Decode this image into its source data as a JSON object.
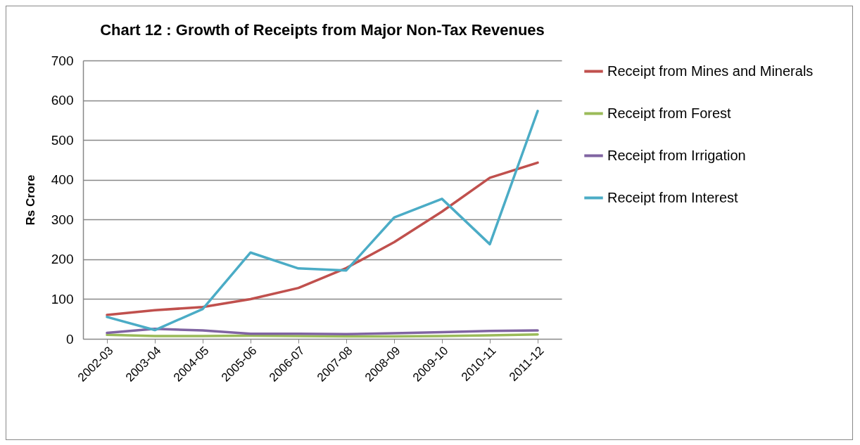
{
  "chart_data": {
    "type": "line",
    "title": "Chart  12  :  Growth of Receipts from Major Non-Tax Revenues",
    "ylabel": "Rs Crore",
    "categories": [
      "2002-03",
      "2003-04",
      "2004-05",
      "2005-06",
      "2006-07",
      "2007-08",
      "2008-09",
      "2009-10",
      "2010-11",
      "2011-12"
    ],
    "series": [
      {
        "name": "Receipt from Mines and Minerals",
        "color": "#c0504d",
        "values": [
          60,
          72,
          80,
          100,
          128,
          178,
          243,
          320,
          405,
          443
        ]
      },
      {
        "name": "Receipt from Forest",
        "color": "#9bbb59",
        "values": [
          10,
          7,
          7,
          8,
          7,
          6,
          6,
          7,
          9,
          11
        ]
      },
      {
        "name": "Receipt from Irrigation",
        "color": "#8064a2",
        "values": [
          15,
          25,
          21,
          13,
          13,
          12,
          14,
          17,
          20,
          21
        ]
      },
      {
        "name": "Receipt from Interest",
        "color": "#4bacc6",
        "values": [
          55,
          22,
          75,
          217,
          177,
          172,
          305,
          352,
          238,
          573
        ]
      }
    ],
    "ylim": [
      0,
      700
    ],
    "yticks": [
      0,
      100,
      200,
      300,
      400,
      500,
      600,
      700
    ],
    "grid": "y",
    "legend": "right",
    "marker": "none",
    "line_style": "solid"
  }
}
